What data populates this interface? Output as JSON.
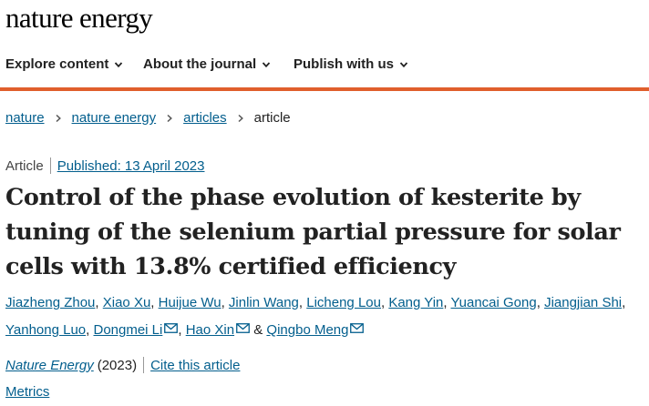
{
  "header": {
    "logo_text": "nature energy"
  },
  "nav": {
    "items": [
      {
        "label": "Explore content"
      },
      {
        "label": "About the journal"
      },
      {
        "label": "Publish with us"
      }
    ],
    "accent_color": "#e05f2c"
  },
  "breadcrumb": {
    "items": [
      "nature",
      "nature energy",
      "articles"
    ],
    "current": "article"
  },
  "article": {
    "type": "Article",
    "published": "Published: 13 April 2023",
    "title": "Control of the phase evolution of kesterite by tuning of the selenium partial pressure for solar cells with 13.8% certified efficiency",
    "authors": [
      "Jiazheng Zhou",
      "Xiao Xu",
      "Huijue Wu",
      "Jinlin Wang",
      "Licheng Lou",
      "Kang Yin",
      "Yuancai Gong",
      "Jiangjian Shi",
      "Yanhong Luo",
      "Dongmei Li",
      "Hao Xin",
      "Qingbo Meng"
    ],
    "author_separator": ", ",
    "author_final_separator": " & ",
    "journal": "Nature Energy",
    "year": "(2023)",
    "cite_label": "Cite this article",
    "metrics_label": "Metrics"
  },
  "colors": {
    "link": "#025e8d",
    "text": "#222222"
  }
}
